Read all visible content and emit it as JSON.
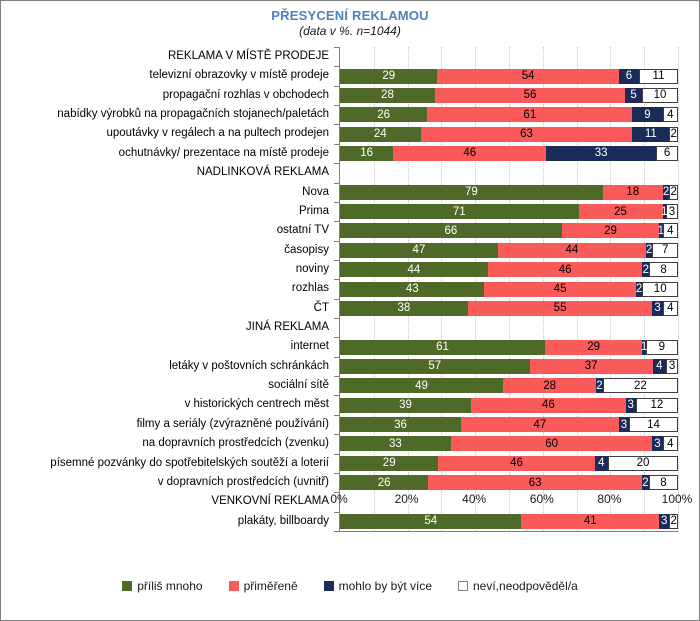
{
  "chart_data": {
    "type": "bar",
    "orientation": "horizontal",
    "stacked": true,
    "title": "PŘESYCENÍ REKLAMOU",
    "subtitle": "(data v %. n=1044)",
    "xlim": [
      0,
      100
    ],
    "x_ticks": [
      "0%",
      "20%",
      "40%",
      "60%",
      "80%",
      "100%"
    ],
    "grid": "vertical dotted lines every 10%",
    "legend_position": "bottom",
    "series": [
      {
        "name": "příliš mnoho",
        "color": "#4F6A28",
        "text_color": "#FFFFFF"
      },
      {
        "name": "přiměřeně",
        "color": "#FB5A5A",
        "text_color": "#000000"
      },
      {
        "name": "mohlo by být více",
        "color": "#1B2B59",
        "text_color": "#FFFFFF"
      },
      {
        "name": "neví,neodpověděl/a",
        "color": "#FFFFFF",
        "text_color": "#000000"
      }
    ],
    "rows": [
      {
        "type": "header",
        "label": "REKLAMA V MÍSTĚ PRODEJE"
      },
      {
        "type": "bar",
        "label": "televizní obrazovky v místě prodeje",
        "values": [
          29,
          54,
          6,
          11
        ]
      },
      {
        "type": "bar",
        "label": "propagační rozhlas v obchodech",
        "values": [
          28,
          56,
          5,
          10
        ]
      },
      {
        "type": "bar",
        "label": "nabídky výrobků na propagačních stojanech/paletách",
        "values": [
          26,
          61,
          9,
          4
        ]
      },
      {
        "type": "bar",
        "label": "upoutávky v regálech a na pultech prodejen",
        "values": [
          24,
          63,
          11,
          2
        ]
      },
      {
        "type": "bar",
        "label": "ochutnávky/ prezentace na místě prodeje",
        "values": [
          16,
          46,
          33,
          6
        ]
      },
      {
        "type": "header",
        "label": "NADLINKOVÁ REKLAMA"
      },
      {
        "type": "bar",
        "label": "Nova",
        "values": [
          79,
          18,
          2,
          2
        ]
      },
      {
        "type": "bar",
        "label": "Prima",
        "values": [
          71,
          25,
          1,
          3
        ]
      },
      {
        "type": "bar",
        "label": "ostatní TV",
        "values": [
          66,
          29,
          1,
          4
        ]
      },
      {
        "type": "bar",
        "label": "časopisy",
        "values": [
          47,
          44,
          2,
          7
        ]
      },
      {
        "type": "bar",
        "label": "noviny",
        "values": [
          44,
          46,
          2,
          8
        ]
      },
      {
        "type": "bar",
        "label": "rozhlas",
        "values": [
          43,
          45,
          2,
          10
        ]
      },
      {
        "type": "bar",
        "label": "ČT",
        "values": [
          38,
          55,
          3,
          4
        ]
      },
      {
        "type": "header",
        "label": "JINÁ REKLAMA"
      },
      {
        "type": "bar",
        "label": "internet",
        "values": [
          61,
          29,
          1,
          9
        ]
      },
      {
        "type": "bar",
        "label": "letáky v poštovních schránkách",
        "values": [
          57,
          37,
          4,
          3
        ]
      },
      {
        "type": "bar",
        "label": "sociální sítě",
        "values": [
          49,
          28,
          2,
          22
        ]
      },
      {
        "type": "bar",
        "label": "v historických centrech měst",
        "values": [
          39,
          46,
          3,
          12
        ]
      },
      {
        "type": "bar",
        "label": "filmy a seriály (zvýrazněné používání)",
        "values": [
          36,
          47,
          3,
          14
        ]
      },
      {
        "type": "bar",
        "label": "na dopravních prostředcích (zvenku)",
        "values": [
          33,
          60,
          3,
          4
        ]
      },
      {
        "type": "bar",
        "label": "písemné pozvánky do spotřebitelských soutěží a loterií",
        "values": [
          29,
          46,
          4,
          20
        ]
      },
      {
        "type": "bar",
        "label": "v dopravních prostředcích (uvnitř)",
        "values": [
          26,
          63,
          2,
          8
        ]
      },
      {
        "type": "header",
        "label": "VENKOVNÍ REKLAMA"
      },
      {
        "type": "bar",
        "label": "plakáty, billboardy",
        "values": [
          54,
          41,
          3,
          2
        ]
      }
    ]
  }
}
